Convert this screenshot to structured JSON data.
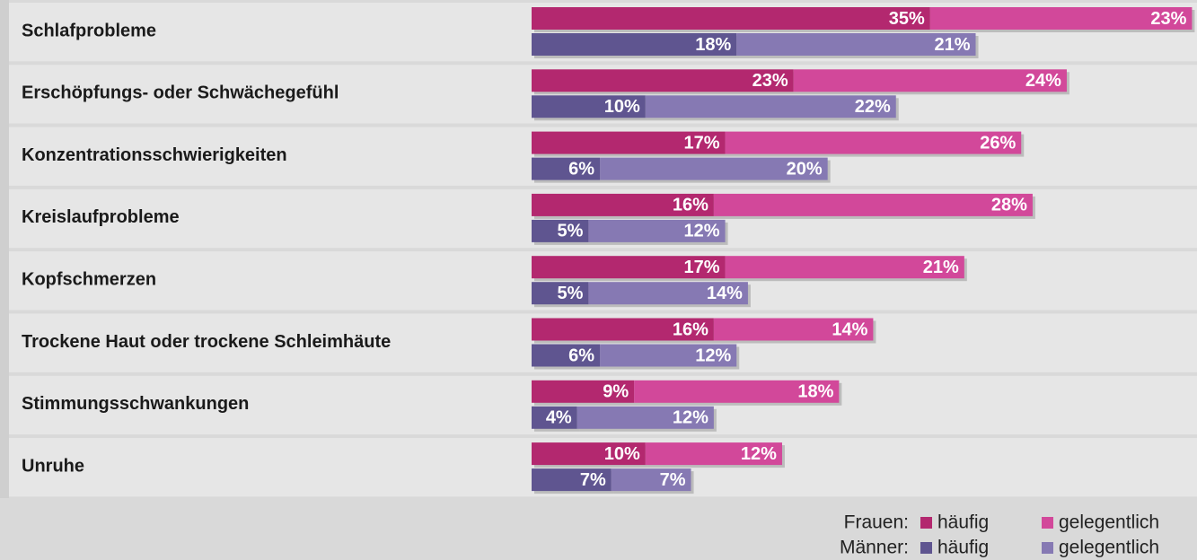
{
  "chart_data": {
    "type": "bar",
    "orientation": "horizontal",
    "stacked": true,
    "categories": [
      "Schlafprobleme",
      "Erschöpfungs- oder Schwächegefühl",
      "Konzentrationsschwierigkeiten",
      "Kreislaufprobleme",
      "Kopfschmerzen",
      "Trockene Haut oder trockene Schleimhäute",
      "Stimmungsschwankungen",
      "Unruhe"
    ],
    "groups": [
      {
        "name": "Frauen:",
        "series": [
          {
            "name": "häufig",
            "color": "#b3286f",
            "values": [
              35,
              23,
              17,
              16,
              17,
              16,
              9,
              10
            ],
            "value_labels": [
              "35%",
              "23%",
              "17%",
              "16%",
              "17%",
              "16%",
              "9%",
              "10%"
            ]
          },
          {
            "name": "gelegentlich",
            "color": "#d2489a",
            "values": [
              23,
              24,
              26,
              28,
              21,
              14,
              18,
              12
            ],
            "value_labels": [
              "23%",
              "24%",
              "26%",
              "28%",
              "21%",
              "14%",
              "18%",
              "12%"
            ]
          }
        ]
      },
      {
        "name": "Männer:",
        "series": [
          {
            "name": "häufig",
            "color": "#5f5590",
            "values": [
              18,
              10,
              6,
              5,
              5,
              6,
              4,
              7
            ],
            "value_labels": [
              "18%",
              "10%",
              "6%",
              "5%",
              "5%",
              "6%",
              "4%",
              "7%"
            ]
          },
          {
            "name": "gelegentlich",
            "color": "#8679b3",
            "values": [
              21,
              22,
              20,
              12,
              14,
              12,
              12,
              7
            ],
            "value_labels": [
              "21%",
              "22%",
              "20%",
              "12%",
              "14%",
              "12%",
              "12%",
              "7%"
            ]
          }
        ]
      }
    ]
  }
}
